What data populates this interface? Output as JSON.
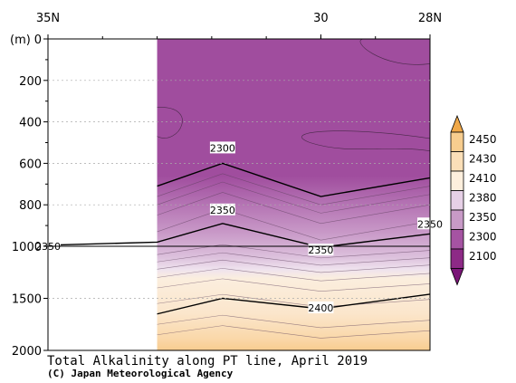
{
  "chart_data": {
    "type": "heatmap",
    "title": "Total Alkalinity along PT line, April 2019",
    "credit": "(C) Japan Meteorological Agency",
    "ylabel": "(m)",
    "x_axis": {
      "range_lat_north": [
        35,
        28
      ],
      "tick_labels": [
        {
          "lat": 35,
          "label": "35N"
        },
        {
          "lat": 30,
          "label": "30"
        },
        {
          "lat": 28,
          "label": "28N"
        }
      ]
    },
    "y_axis": {
      "range": [
        0,
        2000
      ],
      "direction": "depth, increasing downward",
      "scale_break_at": 1000,
      "tick_labels": [
        "0",
        "200",
        "400",
        "600",
        "800",
        "1000",
        "1500",
        "2000"
      ],
      "ticks": [
        0,
        200,
        400,
        600,
        800,
        1000,
        1500,
        2000
      ]
    },
    "data_start_lat": 33.0,
    "levels": [
      2100,
      2300,
      2350,
      2380,
      2410,
      2430,
      2450
    ],
    "level_colors": [
      "#9b3d97",
      "#b978b7",
      "#d4b1d4",
      "#f9ebda",
      "#f9d9b0",
      "#f4b55f",
      "#e89a3a"
    ],
    "legend": {
      "labels": [
        "2450",
        "2430",
        "2410",
        "2380",
        "2350",
        "2300",
        "2100"
      ],
      "colors": [
        "#f7cd8f",
        "#fbdfb8",
        "#fdefdd",
        "#e6d0e6",
        "#c89ac7",
        "#a553a2",
        "#8d2a86"
      ]
    },
    "contours": [
      {
        "value": 2300,
        "major": true,
        "label": "2300",
        "points": [
          [
            33.0,
            710
          ],
          [
            31.8,
            600
          ],
          [
            30.0,
            760
          ],
          [
            28.0,
            670
          ]
        ]
      },
      {
        "value": 2350,
        "major": true,
        "label": "2350",
        "points": [
          [
            35.0,
            995
          ],
          [
            33.0,
            980
          ],
          [
            31.8,
            890
          ],
          [
            30.0,
            1010
          ],
          [
            28.0,
            940
          ]
        ]
      },
      {
        "value": 2400,
        "major": true,
        "label": "2400",
        "points": [
          [
            33.0,
            1650
          ],
          [
            31.8,
            1500
          ],
          [
            30.0,
            1600
          ],
          [
            28.0,
            1460
          ]
        ]
      }
    ]
  }
}
